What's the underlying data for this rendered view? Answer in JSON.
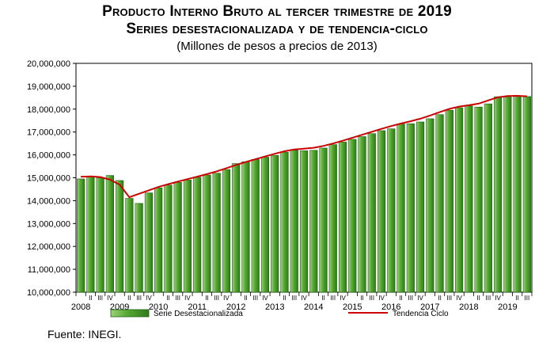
{
  "header": {
    "title_line1": "Producto Interno Bruto al tercer trimestre de 2019",
    "title_line2": "Series desestacionalizada y de tendencia-ciclo",
    "subtitle": "(Millones de pesos a precios de 2013)"
  },
  "footer": {
    "source": "Fuente: INEGI."
  },
  "colors": {
    "bar_fill": "#55a832",
    "bar_edge": "#1f5f10",
    "trend": "#cc0000",
    "frame": "#000000"
  },
  "chart_data": {
    "type": "bar",
    "title": "Producto Interno Bruto al tercer trimestre de 2019",
    "ylim": [
      10000000,
      20000000
    ],
    "y_ticks": [
      10000000,
      11000000,
      12000000,
      13000000,
      14000000,
      15000000,
      16000000,
      17000000,
      18000000,
      19000000,
      20000000
    ],
    "y_tick_labels": [
      "10,000,000",
      "11,000,000",
      "12,000,000",
      "13,000,000",
      "14,000,000",
      "15,000,000",
      "16,000,000",
      "17,000,000",
      "18,000,000",
      "19,000,000",
      "20,000,000"
    ],
    "years": [
      "2008",
      "2009",
      "2010",
      "2011",
      "2012",
      "2013",
      "2014",
      "2015",
      "2016",
      "2017",
      "2018",
      "2019"
    ],
    "quarter_labels": [
      "",
      "II",
      "III",
      "IV"
    ],
    "categories": [
      "2008 I",
      "2008 II",
      "2008 III",
      "2008 IV",
      "2009 I",
      "2009 II",
      "2009 III",
      "2009 IV",
      "2010 I",
      "2010 II",
      "2010 III",
      "2010 IV",
      "2011 I",
      "2011 II",
      "2011 III",
      "2011 IV",
      "2012 I",
      "2012 II",
      "2012 III",
      "2012 IV",
      "2013 I",
      "2013 II",
      "2013 III",
      "2013 IV",
      "2014 I",
      "2014 II",
      "2014 III",
      "2014 IV",
      "2015 I",
      "2015 II",
      "2015 III",
      "2015 IV",
      "2016 I",
      "2016 II",
      "2016 III",
      "2016 IV",
      "2017 I",
      "2017 II",
      "2017 III",
      "2017 IV",
      "2018 I",
      "2018 II",
      "2018 III",
      "2018 IV",
      "2019 I",
      "2019 II",
      "2019 III"
    ],
    "grid": false,
    "legend_position": "bottom",
    "series": [
      {
        "name": "Serie Desestacionalizada",
        "type": "bar",
        "values": [
          14950000,
          15040000,
          15000000,
          15100000,
          14880000,
          14100000,
          13880000,
          14340000,
          14560000,
          14680000,
          14800000,
          14900000,
          15020000,
          15120000,
          15200000,
          15360000,
          15620000,
          15700000,
          15800000,
          15900000,
          15980000,
          16120000,
          16200000,
          16180000,
          16200000,
          16300000,
          16450000,
          16560000,
          16680000,
          16800000,
          16930000,
          17060000,
          17140000,
          17350000,
          17360000,
          17440000,
          17580000,
          17760000,
          17950000,
          18060000,
          18140000,
          18090000,
          18230000,
          18540000,
          18530000,
          18560000,
          18550000
        ]
      },
      {
        "name": "Tendencia Ciclo",
        "type": "line",
        "values": [
          15040000,
          15060000,
          15030000,
          14920000,
          14700000,
          14150000,
          14300000,
          14450000,
          14600000,
          14720000,
          14830000,
          14940000,
          15050000,
          15160000,
          15280000,
          15420000,
          15560000,
          15690000,
          15810000,
          15930000,
          16050000,
          16160000,
          16240000,
          16270000,
          16310000,
          16390000,
          16500000,
          16620000,
          16750000,
          16880000,
          17010000,
          17140000,
          17260000,
          17370000,
          17470000,
          17580000,
          17720000,
          17870000,
          18010000,
          18110000,
          18170000,
          18240000,
          18380000,
          18520000,
          18570000,
          18580000,
          18560000
        ]
      }
    ]
  }
}
